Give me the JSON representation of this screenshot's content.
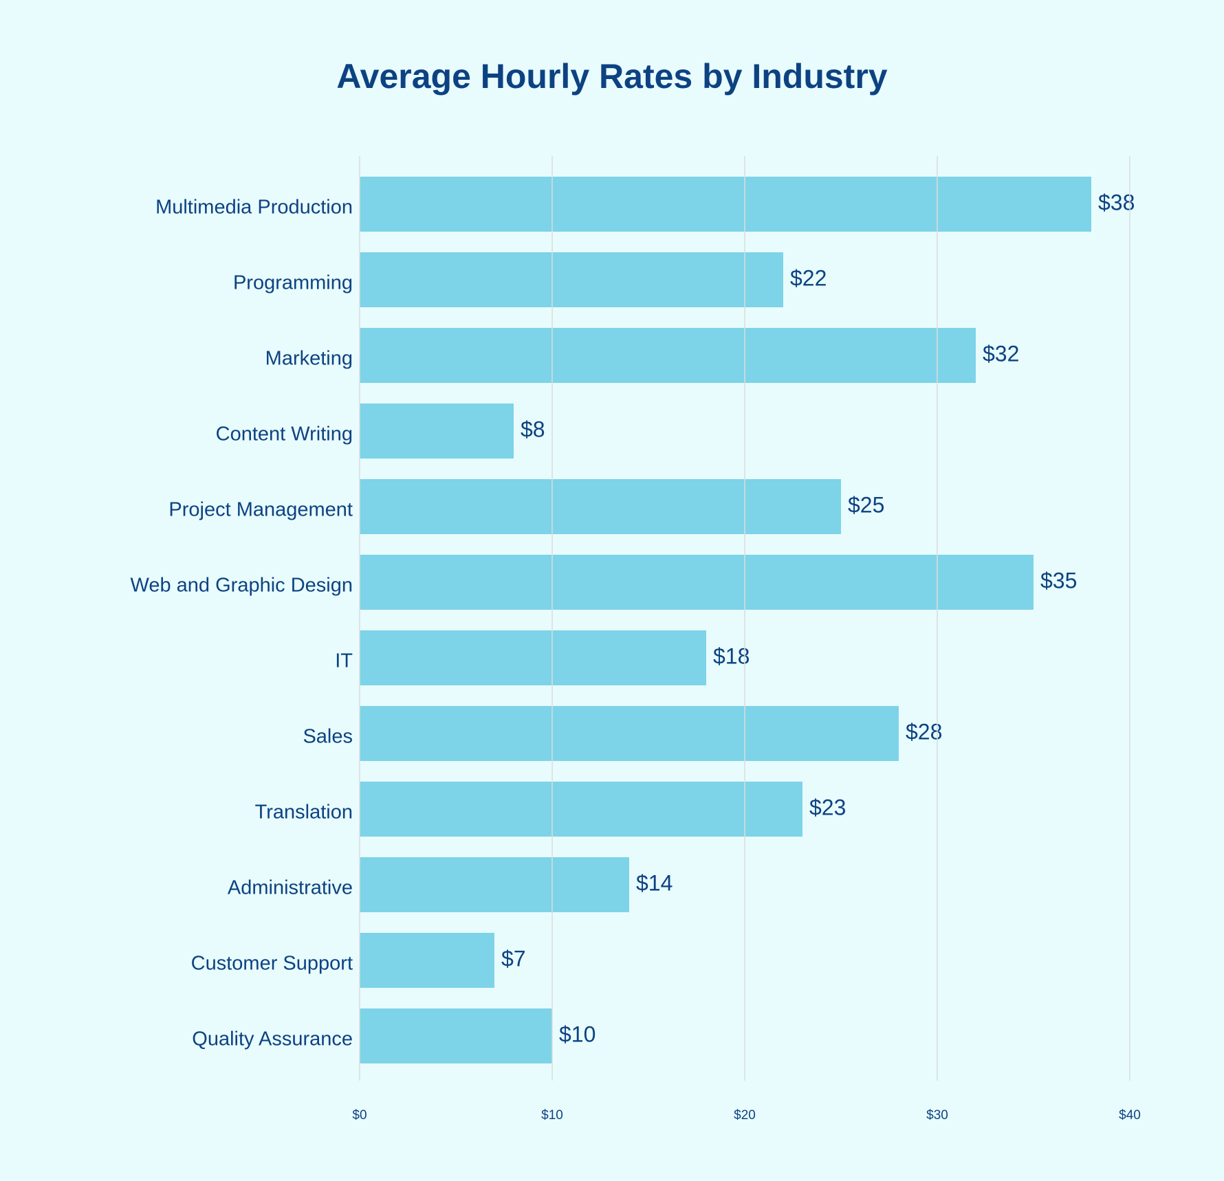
{
  "chart_data": {
    "type": "bar",
    "orientation": "horizontal",
    "title": "Average Hourly Rates by Industry",
    "categories": [
      "Multimedia Production",
      "Programming",
      "Marketing",
      "Content Writing",
      "Project Management",
      "Web and Graphic Design",
      "IT",
      "Sales",
      "Translation",
      "Administrative",
      "Customer Support",
      "Quality Assurance"
    ],
    "values": [
      38,
      22,
      32,
      8,
      25,
      35,
      18,
      28,
      23,
      14,
      7,
      10
    ],
    "value_labels": [
      "$38",
      "$22",
      "$32",
      "$8",
      "$25",
      "$35",
      "$18",
      "$28",
      "$23",
      "$14",
      "$7",
      "$10"
    ],
    "color": "#7dd3e8",
    "xlim": [
      0,
      40
    ],
    "xticks": [
      {
        "value": 0,
        "label": "$0"
      },
      {
        "value": 10,
        "label": "$10"
      },
      {
        "value": 20,
        "label": "$20"
      },
      {
        "value": 30,
        "label": "$30"
      },
      {
        "value": 40,
        "label": "$40"
      }
    ],
    "grid": true
  }
}
